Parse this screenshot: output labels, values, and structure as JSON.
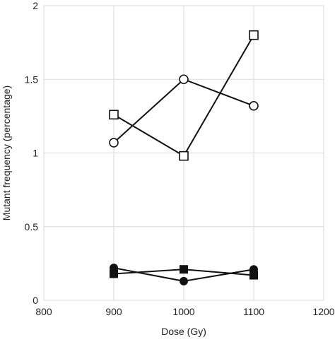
{
  "chart_data": {
    "type": "line",
    "xlabel": "Dose (Gy)",
    "ylabel": "Mutant frequency (percentage)",
    "xlim": [
      800,
      1200
    ],
    "ylim": [
      0,
      2
    ],
    "xticks": [
      "800",
      "900",
      "1000",
      "1100",
      "1200"
    ],
    "yticks": [
      "0",
      "0.5",
      "1",
      "1.5",
      "2"
    ],
    "x_tick_values": [
      800,
      900,
      1000,
      1100,
      1200
    ],
    "y_tick_values": [
      0,
      0.5,
      1,
      1.5,
      2
    ],
    "grid": true,
    "series": [
      {
        "marker": "open-square",
        "x": [
          900,
          1000,
          1100
        ],
        "y": [
          1.26,
          0.98,
          1.8
        ]
      },
      {
        "marker": "open-circle",
        "x": [
          900,
          1000,
          1100
        ],
        "y": [
          1.07,
          1.5,
          1.32
        ]
      },
      {
        "marker": "filled-square",
        "x": [
          900,
          1000,
          1100
        ],
        "y": [
          0.18,
          0.21,
          0.17
        ]
      },
      {
        "marker": "filled-circle",
        "x": [
          900,
          1000,
          1100
        ],
        "y": [
          0.22,
          0.13,
          0.21
        ]
      }
    ],
    "colors": {
      "line": "#111111",
      "grid": "#d9d9d9",
      "text": "#222222"
    }
  }
}
